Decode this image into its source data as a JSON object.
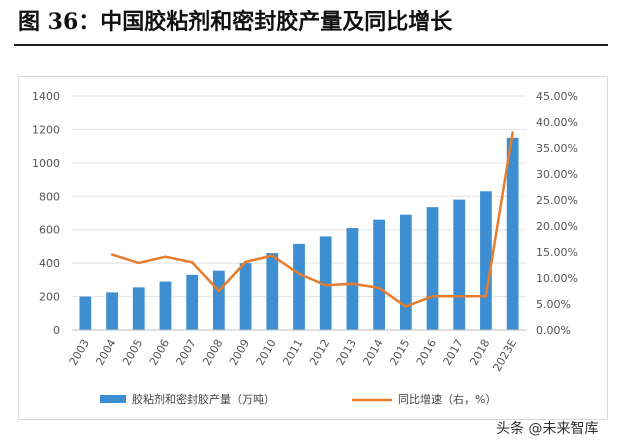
{
  "figure_title": "图  36：中国胶粘剂和密封胶产量及同比增长",
  "watermark": "头条 @未来智库",
  "colors": {
    "bar": "#3d8fd1",
    "line": "#e57c2e",
    "grid": "#e3e3e3",
    "axis_text": "#555555"
  },
  "chart_data": {
    "type": "bar",
    "categories": [
      "2003",
      "2004",
      "2005",
      "2006",
      "2007",
      "2008",
      "2009",
      "2010",
      "2011",
      "2012",
      "2013",
      "2014",
      "2015",
      "2016",
      "2017",
      "2018",
      "2023E"
    ],
    "series": [
      {
        "name": "胶粘剂和密封胶产量（万吨）",
        "type": "bar",
        "axis": "left",
        "values": [
          200,
          225,
          255,
          290,
          330,
          355,
          400,
          460,
          515,
          560,
          610,
          660,
          690,
          735,
          780,
          830,
          1150
        ]
      },
      {
        "name": "同比增速（右，%）",
        "type": "line",
        "axis": "right",
        "values": [
          null,
          14.5,
          12.9,
          14.1,
          13.0,
          7.5,
          13.1,
          14.3,
          10.8,
          8.6,
          8.9,
          8.1,
          4.5,
          6.5,
          6.5,
          6.5,
          38.0
        ]
      }
    ],
    "y_left": {
      "ylim": [
        0,
        1400
      ],
      "ticks": [
        "0",
        "200",
        "400",
        "600",
        "800",
        "1000",
        "1200",
        "1400"
      ]
    },
    "y_right": {
      "ylim": [
        0,
        45
      ],
      "ticks": [
        "0.00%",
        "5.00%",
        "10.00%",
        "15.00%",
        "20.00%",
        "25.00%",
        "30.00%",
        "35.00%",
        "40.00%",
        "45.00%"
      ]
    },
    "grid": true,
    "legend_position": "bottom"
  }
}
